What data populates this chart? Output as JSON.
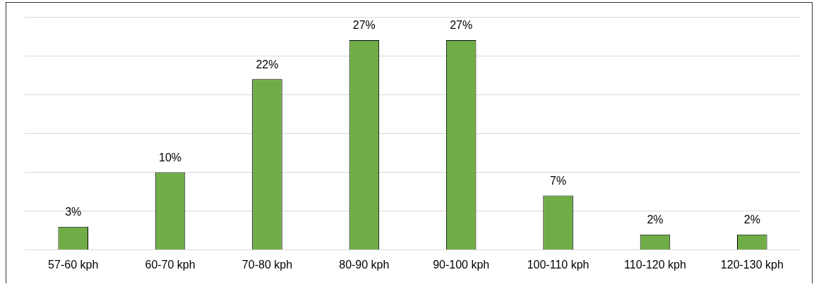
{
  "chart_data": {
    "type": "bar",
    "categories": [
      "57-60 kph",
      "60-70 kph",
      "70-80 kph",
      "80-90 kph",
      "90-100 kph",
      "100-110 kph",
      "110-120 kph",
      "120-130 kph"
    ],
    "values": [
      3,
      10,
      22,
      27,
      27,
      7,
      2,
      2
    ],
    "value_labels": [
      "3%",
      "10%",
      "22%",
      "27%",
      "27%",
      "7%",
      "2%",
      "2%"
    ],
    "color": "#70ad47",
    "ylim": [
      0,
      30
    ],
    "yticks": [
      {
        "value": 0,
        "label": null
      },
      {
        "value": 5,
        "label": null
      },
      {
        "value": 10,
        "label": null
      },
      {
        "value": 15,
        "label": null
      },
      {
        "value": 20,
        "label": null
      },
      {
        "value": 25,
        "label": null
      },
      {
        "value": 30,
        "label": null
      }
    ],
    "grid": "y",
    "tick_labels": "x",
    "legend": false
  }
}
